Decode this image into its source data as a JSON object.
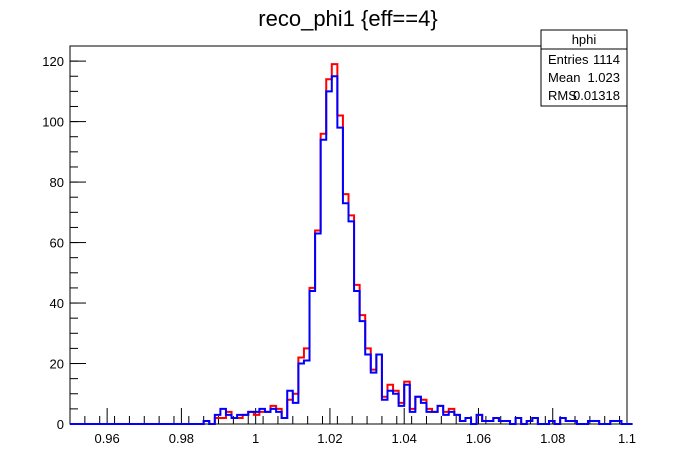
{
  "chart_data": {
    "type": "histogram",
    "title": "reco_phi1 {eff==4}",
    "xlabel": "",
    "ylabel": "",
    "xlim": [
      0.95,
      1.1
    ],
    "ylim": [
      0,
      125
    ],
    "x_ticks": [
      0.96,
      0.98,
      1.0,
      1.02,
      1.04,
      1.06,
      1.08,
      1.1
    ],
    "x_tick_labels": [
      "0.96",
      "0.98",
      "1",
      "1.02",
      "1.04",
      "1.06",
      "1.08",
      "1.1"
    ],
    "y_ticks": [
      0,
      20,
      40,
      60,
      80,
      100,
      120
    ],
    "y_tick_labels": [
      "0",
      "20",
      "40",
      "60",
      "80",
      "100",
      "120"
    ],
    "bin_width": 0.0015,
    "bin_start": 0.95,
    "series": [
      {
        "color": "#ff0000",
        "values": [
          0,
          0,
          0,
          0,
          0,
          0,
          0,
          0,
          0,
          0,
          0,
          0,
          0,
          0,
          0,
          0,
          0,
          0,
          0,
          0,
          0,
          0,
          0,
          0,
          1,
          0,
          2,
          2,
          4,
          2,
          2,
          3,
          4,
          3,
          4,
          4,
          6,
          5,
          2,
          8,
          10,
          22,
          25,
          45,
          64,
          96,
          114,
          119,
          102,
          76,
          69,
          46,
          36,
          25,
          18,
          23,
          9,
          13,
          11,
          7,
          14,
          5,
          9,
          8,
          5,
          4,
          6,
          4,
          5,
          3,
          1,
          2,
          0,
          3,
          1,
          1,
          2,
          1,
          1,
          0,
          2,
          0,
          1,
          2,
          0,
          0,
          1,
          0,
          2,
          1,
          1,
          0,
          0,
          1,
          1,
          0,
          0,
          1,
          1,
          0,
          0
        ]
      },
      {
        "color": "#0000ff",
        "values": [
          0,
          0,
          0,
          0,
          0,
          0,
          0,
          0,
          0,
          0,
          0,
          0,
          0,
          0,
          0,
          0,
          0,
          0,
          0,
          0,
          0,
          0,
          0,
          0,
          1,
          0,
          3,
          5,
          3,
          2,
          3,
          3,
          4,
          4,
          5,
          4,
          5,
          4,
          2,
          11,
          7,
          20,
          21,
          44,
          63,
          94,
          110,
          115,
          98,
          73,
          67,
          44,
          34,
          23,
          17,
          23,
          8,
          11,
          10,
          6,
          13,
          4,
          9,
          7,
          4,
          4,
          6,
          3,
          4,
          3,
          1,
          2,
          0,
          3,
          1,
          1,
          2,
          1,
          1,
          0,
          2,
          0,
          1,
          2,
          0,
          0,
          1,
          0,
          2,
          1,
          1,
          0,
          0,
          1,
          1,
          0,
          0,
          1,
          1,
          0,
          0
        ]
      }
    ],
    "stats_box": {
      "name": "hphi",
      "rows": [
        {
          "label": "Entries",
          "value": "1114"
        },
        {
          "label": "Mean",
          "value": "1.023"
        },
        {
          "label": "RMS",
          "value": "0.01318"
        }
      ]
    },
    "grid": false,
    "legend": "top-right"
  }
}
